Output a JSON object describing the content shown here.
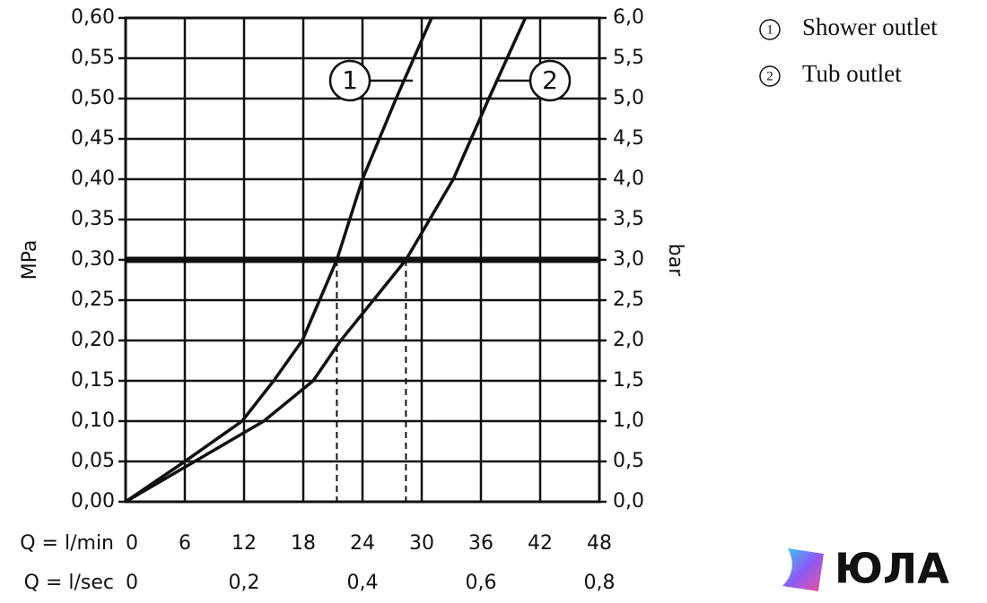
{
  "chart_data": {
    "type": "line",
    "ylabel": "MPa",
    "y2label": "bar",
    "xlabel": "Q = l/min",
    "x2label": "Q = l/sec",
    "xlim": [
      0,
      48
    ],
    "xticks": [
      0,
      6,
      12,
      18,
      24,
      30,
      36,
      42,
      48
    ],
    "x2lim": [
      0,
      0.8
    ],
    "x2ticks": [
      0,
      {
        "value": 0.2,
        "label": "0,2"
      },
      {
        "value": 0.4,
        "label": "0,4"
      },
      {
        "value": 0.6,
        "label": "0,6"
      },
      {
        "value": 0.8,
        "label": "0,8"
      }
    ],
    "ylim": [
      0,
      0.6
    ],
    "yticks": [
      {
        "value": 0,
        "label": "0,00"
      },
      {
        "value": 0.05,
        "label": "0,05"
      },
      {
        "value": 0.1,
        "label": "0,10"
      },
      {
        "value": 0.15,
        "label": "0,15"
      },
      {
        "value": 0.2,
        "label": "0,20"
      },
      {
        "value": 0.25,
        "label": "0,25"
      },
      {
        "value": 0.3,
        "label": "0,30"
      },
      {
        "value": 0.35,
        "label": "0,35"
      },
      {
        "value": 0.4,
        "label": "0,40"
      },
      {
        "value": 0.45,
        "label": "0,45"
      },
      {
        "value": 0.5,
        "label": "0,50"
      },
      {
        "value": 0.55,
        "label": "0,55"
      },
      {
        "value": 0.6,
        "label": "0,60"
      }
    ],
    "y2lim": [
      0,
      6
    ],
    "y2ticks": [
      {
        "value": 0,
        "label": "0,0"
      },
      {
        "value": 0.5,
        "label": "0,5"
      },
      {
        "value": 1,
        "label": "1,0"
      },
      {
        "value": 1.5,
        "label": "1,5"
      },
      {
        "value": 2,
        "label": "2,0"
      },
      {
        "value": 2.5,
        "label": "2,5"
      },
      {
        "value": 3,
        "label": "3,0"
      },
      {
        "value": 3.5,
        "label": "3,5"
      },
      {
        "value": 4,
        "label": "4,0"
      },
      {
        "value": 4.5,
        "label": "4,5"
      },
      {
        "value": 5,
        "label": "5,0"
      },
      {
        "value": 5.5,
        "label": "5,5"
      },
      {
        "value": 6,
        "label": "6,0"
      }
    ],
    "grid": true,
    "threshold": 0.3,
    "threshold_x": [
      21.4,
      28.4
    ],
    "color": "#111111",
    "series": [
      {
        "name": "Shower outlet",
        "label": "1",
        "color": "#111111",
        "x": [
          0,
          6,
          11.8,
          15,
          17.9,
          21.4,
          24,
          27.4,
          31
        ],
        "values": [
          0,
          0.05,
          0.1,
          0.15,
          0.2,
          0.3,
          0.4,
          0.5,
          0.6
        ]
      },
      {
        "name": "Tub outlet",
        "label": "2",
        "color": "#111111",
        "x": [
          0,
          7,
          14,
          19,
          21.8,
          28.4,
          33.2,
          36.8,
          40.5
        ],
        "values": [
          0,
          0.05,
          0.1,
          0.15,
          0.2,
          0.3,
          0.4,
          0.5,
          0.6
        ]
      }
    ],
    "watermark": "ЮЛА"
  }
}
